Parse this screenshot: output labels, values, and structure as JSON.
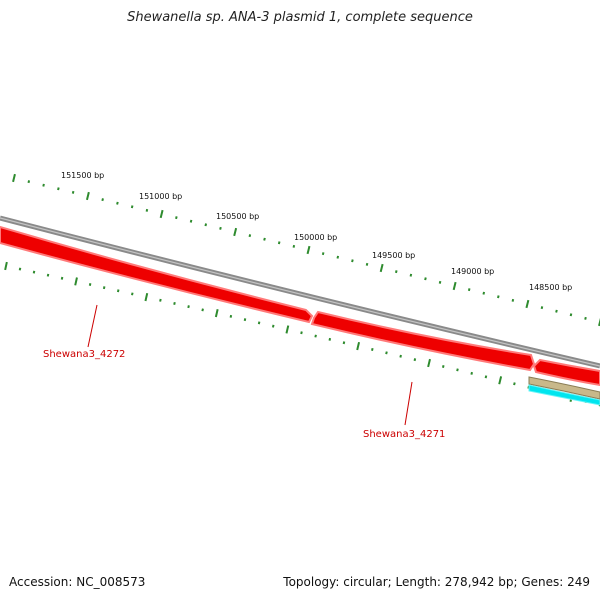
{
  "title": "Shewanella sp. ANA-3 plasmid 1, complete sequence",
  "footer": {
    "accession": "Accession: NC_008573",
    "summary": "Topology: circular; Length: 278,942 bp; Genes: 249"
  },
  "ruler": {
    "labels": [
      "151500 bp",
      "151000 bp",
      "150500 bp",
      "150000 bp",
      "149500 bp",
      "149000 bp",
      "148500 bp"
    ]
  },
  "genes": [
    {
      "locus_tag": "Shewana3_4272",
      "strand": "minus",
      "color": "#ee0000"
    },
    {
      "locus_tag": "Shewana3_4271",
      "strand": "minus",
      "color": "#ee0000"
    }
  ],
  "colors": {
    "backbone": "#888888",
    "gene": "#ee0000",
    "gene_outline": "#ff7777",
    "ticks": "#2e8b2e",
    "label_text": "#cc0000",
    "feature_tan": "#c8b88a",
    "feature_cyan": "#00e5ee"
  }
}
